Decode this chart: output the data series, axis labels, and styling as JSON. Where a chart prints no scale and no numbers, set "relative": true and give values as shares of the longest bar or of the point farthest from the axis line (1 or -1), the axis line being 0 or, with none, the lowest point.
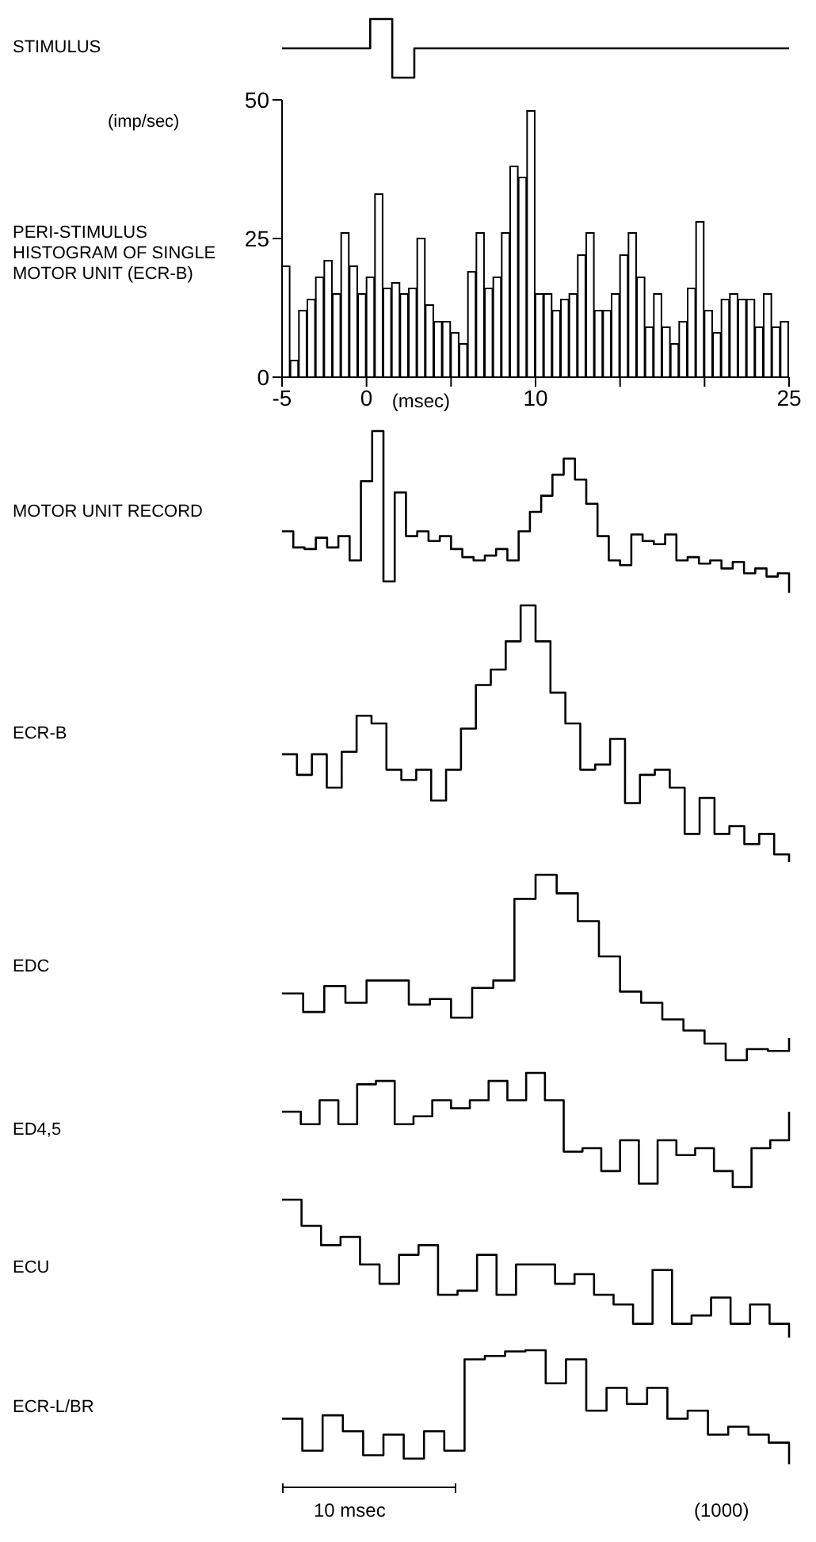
{
  "chart_data": [
    {
      "type": "step",
      "ylabel": "STIMULUS",
      "relative": true,
      "color": "#000000",
      "categories": [
        null,
        null,
        null,
        null,
        null,
        null,
        null,
        null,
        null,
        null,
        null,
        null,
        null,
        null,
        null,
        null,
        null,
        null,
        null,
        null,
        null,
        null,
        null,
        null
      ],
      "values": [
        0.5,
        0.5,
        0.5,
        0.5,
        1,
        0,
        0.5,
        0.5,
        0.5,
        0.5,
        0.5,
        0.5,
        0.5,
        0.5,
        0.5,
        0.5,
        0.5,
        0.5,
        0.5,
        0.5,
        0.5,
        0.5,
        0.5,
        0.5
      ]
    },
    {
      "type": "histogram",
      "title": "PERI-STIMULUS HISTOGRAM OF SINGLE MOTOR UNIT (ECR-B)",
      "ylabel": "(imp/sec)",
      "xlabel": "(msec)",
      "color": "#000000",
      "bins": [
        -5,
        -4.5,
        -4,
        -3.5,
        -3,
        -2.5,
        -2,
        -1.5,
        -1,
        -0.5,
        0,
        0.5,
        1,
        1.5,
        2,
        2.5,
        3,
        3.5,
        4,
        4.5,
        5,
        5.5,
        6,
        6.5,
        7,
        7.5,
        8,
        8.5,
        9,
        9.5,
        10,
        10.5,
        11,
        11.5,
        12,
        12.5,
        13,
        13.5,
        14,
        14.5,
        15,
        15.5,
        16,
        16.5,
        17,
        17.5,
        18,
        18.5,
        19,
        19.5,
        20,
        20.5,
        21,
        21.5,
        22,
        22.5,
        23,
        23.5,
        24,
        24.5,
        25
      ],
      "values": [
        20,
        3,
        12,
        14,
        18,
        21,
        15,
        26,
        20,
        15,
        18,
        33,
        16,
        17,
        15,
        16,
        25,
        13,
        10,
        10,
        8,
        6,
        19,
        26,
        16,
        18,
        26,
        38,
        36,
        48,
        15,
        15,
        12,
        14,
        15,
        22,
        26,
        12,
        12,
        15,
        22,
        26,
        18,
        9,
        15,
        9,
        6,
        10,
        16,
        28,
        12,
        8,
        14,
        15,
        14,
        14,
        9,
        15,
        9,
        10
      ],
      "xlim": [
        -5,
        25
      ],
      "xticks": [
        -5,
        0,
        {
          "value": 5,
          "label": null
        },
        10,
        {
          "value": 15,
          "label": null
        },
        {
          "value": 20,
          "label": null
        },
        25
      ],
      "ylim": [
        0,
        50
      ],
      "yticks": [
        0,
        25,
        50
      ]
    },
    {
      "type": "step",
      "ylabel": "MOTOR UNIT RECORD",
      "relative": true,
      "color": "#000000",
      "categories": [
        null,
        null,
        null,
        null,
        null,
        null,
        null,
        null,
        null,
        null,
        null,
        null,
        null,
        null,
        null,
        null,
        null,
        null,
        null,
        null,
        null,
        null,
        null,
        null,
        null,
        null,
        null,
        null,
        null,
        null,
        null,
        null,
        null,
        null,
        null,
        null,
        null,
        null,
        null,
        null,
        null,
        null,
        null,
        null,
        null,
        null
      ],
      "values": [
        0.38,
        0.28,
        0.27,
        0.34,
        0.28,
        0.35,
        0.2,
        0.69,
        1,
        0.07,
        0.62,
        0.35,
        0.38,
        0.32,
        0.35,
        0.27,
        0.22,
        0.2,
        0.23,
        0.27,
        0.2,
        0.38,
        0.5,
        0.6,
        0.73,
        0.83,
        0.7,
        0.55,
        0.35,
        0.2,
        0.17,
        0.36,
        0.32,
        0.3,
        0.36,
        0.2,
        0.22,
        0.18,
        0.2,
        0.15,
        0.19,
        0.12,
        0.15,
        0.1,
        0.12,
        0
      ]
    },
    {
      "type": "step",
      "ylabel": "ECR-B",
      "relative": true,
      "color": "#000000",
      "categories": [
        null,
        null,
        null,
        null,
        null,
        null,
        null,
        null,
        null,
        null,
        null,
        null,
        null,
        null,
        null,
        null,
        null,
        null,
        null,
        null,
        null,
        null,
        null,
        null,
        null,
        null,
        null,
        null,
        null,
        null,
        null,
        null,
        null,
        null,
        null
      ],
      "values": [
        0.42,
        0.34,
        0.42,
        0.29,
        0.43,
        0.57,
        0.54,
        0.36,
        0.32,
        0.36,
        0.24,
        0.36,
        0.52,
        0.69,
        0.75,
        0.86,
        1,
        0.86,
        0.66,
        0.54,
        0.36,
        0.38,
        0.48,
        0.23,
        0.34,
        0.36,
        0.29,
        0.11,
        0.25,
        0.11,
        0.14,
        0.07,
        0.11,
        0.03,
        0
      ]
    },
    {
      "type": "step",
      "ylabel": "EDC",
      "relative": true,
      "color": "#000000",
      "categories": [
        null,
        null,
        null,
        null,
        null,
        null,
        null,
        null,
        null,
        null,
        null,
        null,
        null,
        null,
        null,
        null,
        null,
        null,
        null,
        null,
        null,
        null,
        null,
        null,
        null
      ],
      "values": [
        0.36,
        0.26,
        0.4,
        0.31,
        0.43,
        0.43,
        0.3,
        0.33,
        0.23,
        0.39,
        0.43,
        0.87,
        1,
        0.9,
        0.75,
        0.56,
        0.37,
        0.31,
        0.22,
        0.16,
        0.09,
        0,
        0.06,
        0.05,
        0.12
      ]
    },
    {
      "type": "step",
      "ylabel": "ED4,5",
      "relative": true,
      "color": "#000000",
      "categories": [
        null,
        null,
        null,
        null,
        null,
        null,
        null,
        null,
        null,
        null,
        null,
        null,
        null,
        null,
        null,
        null,
        null,
        null,
        null,
        null,
        null,
        null,
        null,
        null,
        null,
        null,
        null,
        null
      ],
      "values": [
        0.66,
        0.55,
        0.76,
        0.55,
        0.9,
        0.93,
        0.55,
        0.62,
        0.76,
        0.69,
        0.76,
        0.93,
        0.76,
        1,
        0.76,
        0.31,
        0.34,
        0.14,
        0.41,
        0.03,
        0.41,
        0.28,
        0.34,
        0.14,
        0,
        0.34,
        0.41,
        0.66
      ]
    },
    {
      "type": "step",
      "ylabel": "ECU",
      "relative": true,
      "color": "#000000",
      "categories": [
        null,
        null,
        null,
        null,
        null,
        null,
        null,
        null,
        null,
        null,
        null,
        null,
        null,
        null,
        null,
        null,
        null,
        null,
        null,
        null,
        null,
        null,
        null,
        null,
        null,
        null,
        null
      ],
      "values": [
        1,
        0.81,
        0.67,
        0.73,
        0.53,
        0.39,
        0.6,
        0.67,
        0.31,
        0.34,
        0.6,
        0.31,
        0.53,
        0.53,
        0.39,
        0.46,
        0.31,
        0.24,
        0.1,
        0.49,
        0.1,
        0.16,
        0.29,
        0.1,
        0.24,
        0.1,
        0
      ]
    },
    {
      "type": "step",
      "ylabel": "ECR-L/BR",
      "relative": true,
      "color": "#000000",
      "annotations": [
        "10 msec",
        "(1000)"
      ],
      "categories": [
        null,
        null,
        null,
        null,
        null,
        null,
        null,
        null,
        null,
        null,
        null,
        null,
        null,
        null,
        null,
        null,
        null,
        null,
        null,
        null,
        null,
        null,
        null,
        null,
        null,
        null
      ],
      "values": [
        0.4,
        0.12,
        0.43,
        0.29,
        0.08,
        0.26,
        0.05,
        0.29,
        0.12,
        0.92,
        0.95,
        0.99,
        1,
        0.71,
        0.92,
        0.47,
        0.67,
        0.53,
        0.67,
        0.4,
        0.47,
        0.26,
        0.33,
        0.26,
        0.19,
        0
      ]
    }
  ]
}
